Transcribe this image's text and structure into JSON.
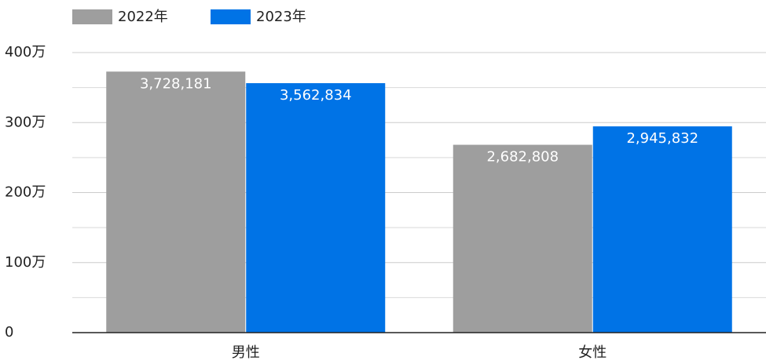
{
  "chart_data": {
    "type": "bar",
    "categories": [
      "男性",
      "女性"
    ],
    "series": [
      {
        "name": "2022年",
        "color": "#9e9e9e",
        "values": [
          3728181,
          2682808
        ],
        "value_labels": [
          "3,728,181",
          "2,682,808"
        ]
      },
      {
        "name": "2023年",
        "color": "#0073e6",
        "values": [
          3562834,
          2945832
        ],
        "value_labels": [
          "3,562,834",
          "2,945,832"
        ]
      }
    ],
    "ylim": [
      0,
      4000000
    ],
    "yticks": [
      0,
      {
        "value": 1000000,
        "label": "100万"
      },
      {
        "value": 2000000,
        "label": "200万"
      },
      {
        "value": 3000000,
        "label": "300万"
      },
      {
        "value": 4000000,
        "label": "400万"
      }
    ],
    "yminorticks": [
      500000,
      1500000,
      2500000,
      3500000
    ],
    "grid": true,
    "legend": "top"
  }
}
